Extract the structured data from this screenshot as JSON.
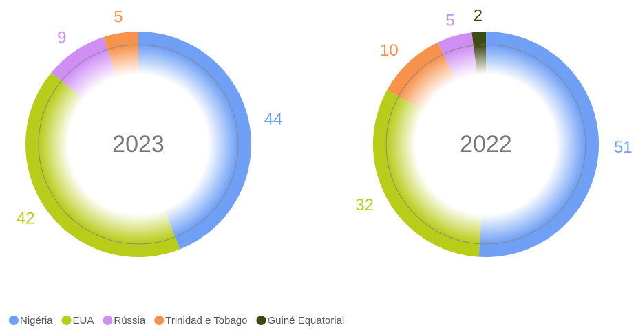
{
  "chart_data": [
    {
      "type": "pie",
      "title": "2023",
      "categories": [
        "Nigéria",
        "EUA",
        "Rússia",
        "Trinidad e Tobago"
      ],
      "values": [
        44,
        42,
        9,
        5
      ],
      "colors": [
        "#6fa0f5",
        "#b8cc1a",
        "#cf8ef5",
        "#f7934c"
      ]
    },
    {
      "type": "pie",
      "title": "2022",
      "categories": [
        "Nigéria",
        "EUA",
        "Trinidad e Tobago",
        "Rússia",
        "Guiné Equatorial"
      ],
      "values": [
        51,
        32,
        10,
        5,
        2
      ],
      "colors": [
        "#6fa0f5",
        "#b8cc1a",
        "#f7934c",
        "#cf8ef5",
        "#3d4a12"
      ]
    }
  ],
  "legend": {
    "categories": [
      "Nigéria",
      "EUA",
      "Rússia",
      "Trinidad e Tobago",
      "Guiné Equatorial"
    ],
    "colors": [
      "#6fa0f5",
      "#b8cc1a",
      "#cf8ef5",
      "#f7934c",
      "#3d4a12"
    ]
  }
}
